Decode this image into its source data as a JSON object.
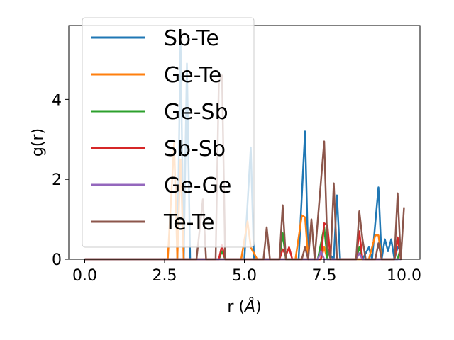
{
  "chart_data": {
    "type": "line",
    "xlabel": "r (",
    "xlabel_unit": "Å",
    "xlabel_close": ")",
    "ylabel": "g(r)",
    "xlim": [
      -0.5,
      10.5
    ],
    "ylim": [
      0,
      5.85
    ],
    "xticks": [
      0.0,
      2.5,
      5.0,
      7.5,
      10.0
    ],
    "xtick_labels": [
      "0.0",
      "2.5",
      "5.0",
      "7.5",
      "10.0"
    ],
    "yticks": [
      0,
      2,
      4
    ],
    "ytick_labels": [
      "0",
      "2",
      "4"
    ],
    "grid": false,
    "legend_position": "upper-left",
    "series": [
      {
        "name": "Sb-Te",
        "color": "#1f77b4",
        "points": [
          [
            0,
            0
          ],
          [
            2.7,
            0
          ],
          [
            2.9,
            0
          ],
          [
            3.0,
            5.45
          ],
          [
            3.1,
            0
          ],
          [
            3.2,
            4.9
          ],
          [
            3.3,
            0
          ],
          [
            5.0,
            0
          ],
          [
            5.2,
            2.8
          ],
          [
            5.3,
            0
          ],
          [
            6.0,
            0
          ],
          [
            6.7,
            0
          ],
          [
            6.9,
            3.2
          ],
          [
            7.0,
            0
          ],
          [
            7.3,
            0
          ],
          [
            7.4,
            0.3
          ],
          [
            7.6,
            0.2
          ],
          [
            7.8,
            0
          ],
          [
            7.9,
            1.6
          ],
          [
            8.0,
            0
          ],
          [
            8.7,
            0
          ],
          [
            8.9,
            0.3
          ],
          [
            9.0,
            0
          ],
          [
            9.2,
            1.8
          ],
          [
            9.3,
            0
          ],
          [
            9.4,
            0.5
          ],
          [
            9.5,
            0.2
          ],
          [
            9.6,
            0.5
          ],
          [
            9.7,
            0
          ],
          [
            9.8,
            0.3
          ],
          [
            9.9,
            0.25
          ]
        ]
      },
      {
        "name": "Ge-Te",
        "color": "#ff7f0e",
        "points": [
          [
            0,
            0
          ],
          [
            2.6,
            0
          ],
          [
            2.8,
            2.9
          ],
          [
            2.9,
            0
          ],
          [
            3.0,
            2.5
          ],
          [
            3.1,
            0
          ],
          [
            4.9,
            0
          ],
          [
            5.1,
            0.95
          ],
          [
            5.2,
            0.3
          ],
          [
            5.4,
            0
          ],
          [
            6.6,
            0
          ],
          [
            6.8,
            1.1
          ],
          [
            6.9,
            1.05
          ],
          [
            7.0,
            0
          ],
          [
            7.4,
            0
          ],
          [
            7.5,
            0.3
          ],
          [
            7.6,
            0
          ],
          [
            8.9,
            0
          ],
          [
            9.1,
            0.6
          ],
          [
            9.2,
            0.6
          ],
          [
            9.3,
            0
          ],
          [
            9.7,
            0
          ],
          [
            9.8,
            0.5
          ],
          [
            9.9,
            0.2
          ]
        ]
      },
      {
        "name": "Ge-Sb",
        "color": "#2ca02c",
        "points": [
          [
            0,
            0
          ],
          [
            4.2,
            0
          ],
          [
            4.3,
            0.2
          ],
          [
            4.4,
            0
          ],
          [
            6.1,
            0
          ],
          [
            6.2,
            0.65
          ],
          [
            6.3,
            0
          ],
          [
            7.3,
            0
          ],
          [
            7.5,
            0.8
          ],
          [
            7.6,
            0
          ],
          [
            8.5,
            0
          ],
          [
            8.6,
            0.3
          ],
          [
            8.7,
            0
          ],
          [
            9.8,
            0
          ],
          [
            9.9,
            0.3
          ]
        ]
      },
      {
        "name": "Sb-Sb",
        "color": "#d62728",
        "points": [
          [
            0,
            0
          ],
          [
            4.2,
            0
          ],
          [
            4.3,
            0.35
          ],
          [
            4.4,
            0
          ],
          [
            6.1,
            0
          ],
          [
            6.2,
            0.25
          ],
          [
            6.3,
            0.1
          ],
          [
            6.4,
            0.3
          ],
          [
            6.5,
            0
          ],
          [
            7.4,
            0
          ],
          [
            7.5,
            0.9
          ],
          [
            7.6,
            0.85
          ],
          [
            7.7,
            0
          ],
          [
            8.5,
            0
          ],
          [
            8.6,
            0.7
          ],
          [
            8.7,
            0
          ],
          [
            9.7,
            0
          ],
          [
            9.8,
            0.55
          ],
          [
            9.9,
            0
          ]
        ]
      },
      {
        "name": "Ge-Ge",
        "color": "#9467bd",
        "points": [
          [
            0,
            0
          ],
          [
            7.3,
            0
          ],
          [
            7.4,
            0.2
          ],
          [
            7.5,
            0
          ],
          [
            8.5,
            0
          ],
          [
            8.6,
            0.15
          ],
          [
            8.7,
            0
          ],
          [
            9.9,
            0
          ]
        ]
      },
      {
        "name": "Te-Te",
        "color": "#8c564b",
        "points": [
          [
            0,
            0
          ],
          [
            3.5,
            0
          ],
          [
            3.7,
            1.5
          ],
          [
            3.8,
            0
          ],
          [
            4.1,
            0
          ],
          [
            4.2,
            4.45
          ],
          [
            4.3,
            4.6
          ],
          [
            4.4,
            0
          ],
          [
            5.6,
            0
          ],
          [
            5.7,
            0.8
          ],
          [
            5.8,
            0
          ],
          [
            6.1,
            0
          ],
          [
            6.2,
            1.35
          ],
          [
            6.3,
            0
          ],
          [
            6.8,
            0
          ],
          [
            6.9,
            0.3
          ],
          [
            7.0,
            0
          ],
          [
            7.1,
            1.0
          ],
          [
            7.2,
            0
          ],
          [
            7.5,
            2.95
          ],
          [
            7.6,
            0.3
          ],
          [
            7.7,
            0
          ],
          [
            7.8,
            1.9
          ],
          [
            7.9,
            0
          ],
          [
            8.5,
            0
          ],
          [
            8.6,
            1.2
          ],
          [
            8.7,
            0.5
          ],
          [
            8.8,
            0
          ],
          [
            9.1,
            0
          ],
          [
            9.2,
            0.4
          ],
          [
            9.3,
            0
          ],
          [
            9.7,
            0
          ],
          [
            9.8,
            1.65
          ],
          [
            9.9,
            0
          ],
          [
            10.0,
            1.3
          ]
        ]
      }
    ]
  }
}
